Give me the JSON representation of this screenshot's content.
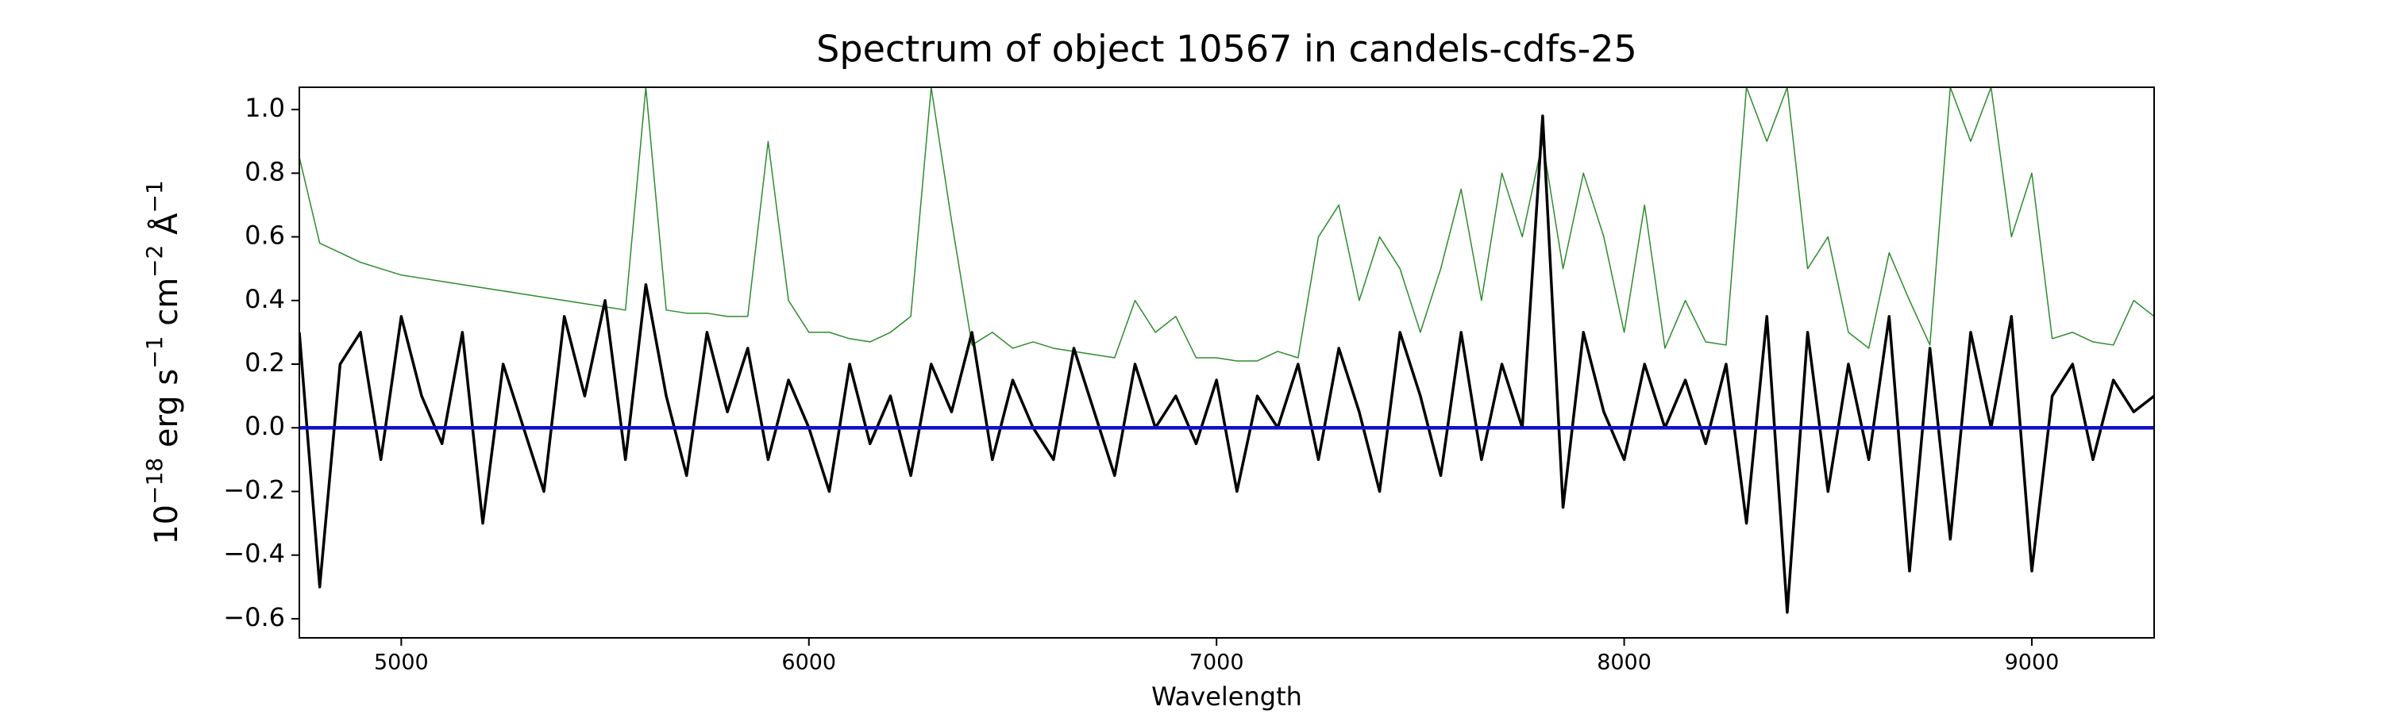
{
  "chart_data": {
    "type": "line",
    "title": "Spectrum of object 10567 in candels-cdfs-25",
    "xlabel": "Wavelength",
    "ylabel": [
      {
        "text": "10"
      },
      {
        "text": "−18",
        "sup": true
      },
      {
        "text": " erg s"
      },
      {
        "text": "−1",
        "sup": true
      },
      {
        "text": " cm"
      },
      {
        "text": "−2",
        "sup": true
      },
      {
        "text": " Å"
      },
      {
        "text": "−1",
        "sup": true
      }
    ],
    "xlim": [
      4750,
      9300
    ],
    "ylim": [
      -0.66,
      1.07
    ],
    "xticks": [
      5000,
      6000,
      7000,
      8000,
      9000
    ],
    "yticks": [
      {
        "value": -0.6,
        "label": "−0.6"
      },
      {
        "value": -0.4,
        "label": "−0.4"
      },
      {
        "value": -0.2,
        "label": "−0.2"
      },
      {
        "value": 0,
        "label": "0.0"
      },
      0.2,
      0.4,
      0.6,
      0.8,
      {
        "value": 1,
        "label": "1.0"
      }
    ],
    "grid": false,
    "series": [
      {
        "color": "#2e8b2e",
        "width": 1.5,
        "x": [
          4750,
          4800,
          4850,
          4900,
          4950,
          5000,
          5050,
          5100,
          5150,
          5200,
          5250,
          5300,
          5350,
          5400,
          5450,
          5500,
          5550,
          5600,
          5650,
          5700,
          5750,
          5800,
          5850,
          5900,
          5950,
          6000,
          6050,
          6100,
          6150,
          6200,
          6250,
          6300,
          6350,
          6400,
          6450,
          6500,
          6550,
          6600,
          6650,
          6700,
          6750,
          6800,
          6850,
          6900,
          6950,
          7000,
          7050,
          7100,
          7150,
          7200,
          7250,
          7300,
          7350,
          7400,
          7450,
          7500,
          7550,
          7600,
          7650,
          7700,
          7750,
          7800,
          7850,
          7900,
          7950,
          8000,
          8050,
          8100,
          8150,
          8200,
          8250,
          8300,
          8350,
          8400,
          8450,
          8500,
          8550,
          8600,
          8650,
          8700,
          8750,
          8800,
          8850,
          8900,
          8950,
          9000,
          9050,
          9100,
          9150,
          9200,
          9250,
          9300
        ],
        "values": [
          0.85,
          0.58,
          0.55,
          0.52,
          0.5,
          0.48,
          0.47,
          0.46,
          0.45,
          0.44,
          0.43,
          0.42,
          0.41,
          0.4,
          0.39,
          0.38,
          0.37,
          1.07,
          0.37,
          0.36,
          0.36,
          0.35,
          0.35,
          0.9,
          0.4,
          0.3,
          0.3,
          0.28,
          0.27,
          0.3,
          0.35,
          1.07,
          0.65,
          0.26,
          0.3,
          0.25,
          0.27,
          0.25,
          0.24,
          0.23,
          0.22,
          0.4,
          0.3,
          0.35,
          0.22,
          0.22,
          0.21,
          0.21,
          0.24,
          0.22,
          0.6,
          0.7,
          0.4,
          0.6,
          0.5,
          0.3,
          0.5,
          0.75,
          0.4,
          0.8,
          0.6,
          0.9,
          0.5,
          0.8,
          0.6,
          0.3,
          0.7,
          0.25,
          0.4,
          0.27,
          0.26,
          1.07,
          0.9,
          1.07,
          0.5,
          0.6,
          0.3,
          0.25,
          0.55,
          0.4,
          0.26,
          1.07,
          0.9,
          1.07,
          0.6,
          0.8,
          0.28,
          0.3,
          0.27,
          0.26,
          0.4,
          0.35
        ]
      },
      {
        "color": "#000000",
        "width": 3.5,
        "x": [
          4750,
          4800,
          4850,
          4900,
          4950,
          5000,
          5050,
          5100,
          5150,
          5200,
          5250,
          5300,
          5350,
          5400,
          5450,
          5500,
          5550,
          5600,
          5650,
          5700,
          5750,
          5800,
          5850,
          5900,
          5950,
          6000,
          6050,
          6100,
          6150,
          6200,
          6250,
          6300,
          6350,
          6400,
          6450,
          6500,
          6550,
          6600,
          6650,
          6700,
          6750,
          6800,
          6850,
          6900,
          6950,
          7000,
          7050,
          7100,
          7150,
          7200,
          7250,
          7300,
          7350,
          7400,
          7450,
          7500,
          7550,
          7600,
          7650,
          7700,
          7750,
          7800,
          7850,
          7900,
          7950,
          8000,
          8050,
          8100,
          8150,
          8200,
          8250,
          8300,
          8350,
          8400,
          8450,
          8500,
          8550,
          8600,
          8650,
          8700,
          8750,
          8800,
          8850,
          8900,
          8950,
          9000,
          9050,
          9100,
          9150,
          9200,
          9250,
          9300
        ],
        "values": [
          0.3,
          -0.5,
          0.2,
          0.3,
          -0.1,
          0.35,
          0.1,
          -0.05,
          0.3,
          -0.3,
          0.2,
          0,
          -0.2,
          0.35,
          0.1,
          0.4,
          -0.1,
          0.45,
          0.1,
          -0.15,
          0.3,
          0.05,
          0.25,
          -0.1,
          0.15,
          0,
          -0.2,
          0.2,
          -0.05,
          0.1,
          -0.15,
          0.2,
          0.05,
          0.3,
          -0.1,
          0.15,
          0,
          -0.1,
          0.25,
          0.05,
          -0.15,
          0.2,
          0,
          0.1,
          -0.05,
          0.15,
          -0.2,
          0.1,
          0,
          0.2,
          -0.1,
          0.25,
          0.05,
          -0.2,
          0.3,
          0.1,
          -0.15,
          0.3,
          -0.1,
          0.2,
          0,
          0.98,
          -0.25,
          0.3,
          0.05,
          -0.1,
          0.2,
          0,
          0.15,
          -0.05,
          0.2,
          -0.3,
          0.35,
          -0.58,
          0.3,
          -0.2,
          0.2,
          -0.1,
          0.35,
          -0.45,
          0.25,
          -0.35,
          0.3,
          0,
          0.35,
          -0.45,
          0.1,
          0.2,
          -0.1,
          0.15,
          0.05,
          0.1
        ]
      },
      {
        "color": "#1010c8",
        "width": 4.5,
        "x": [
          4750,
          9300
        ],
        "values": [
          0,
          0
        ]
      }
    ]
  }
}
